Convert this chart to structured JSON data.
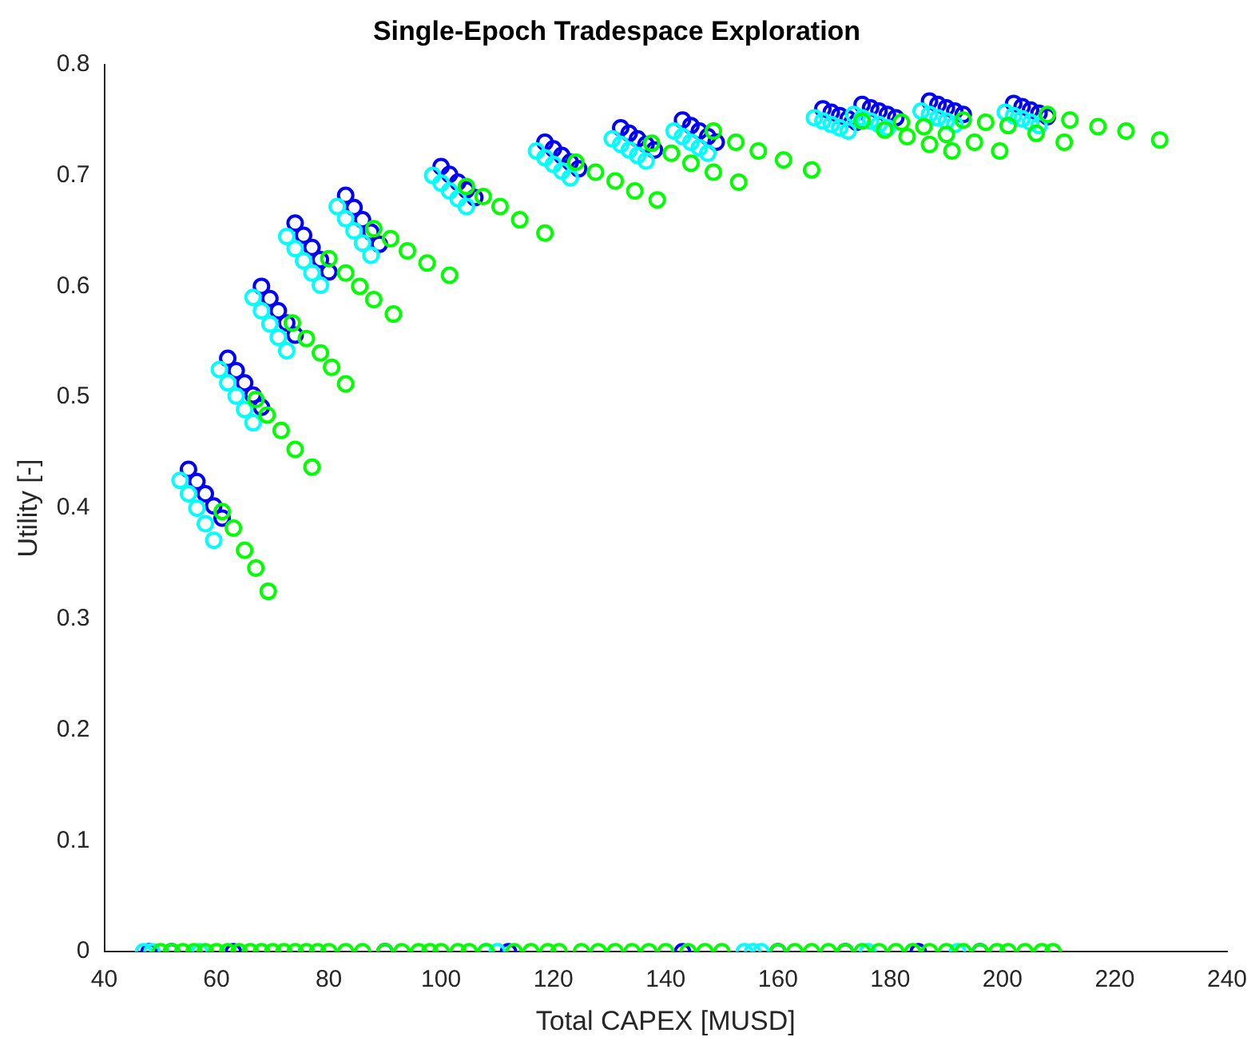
{
  "chart_data": {
    "type": "scatter",
    "title": "Single-Epoch Tradespace Exploration",
    "xlabel": "Total CAPEX [MUSD]",
    "ylabel": "Utility [-]",
    "xlim": [
      40,
      240
    ],
    "xticks": [
      40,
      60,
      80,
      100,
      120,
      140,
      160,
      180,
      200,
      220,
      240
    ],
    "ylim": [
      0,
      0.8
    ],
    "yticks": [
      0,
      0.1,
      0.2,
      0.3,
      0.4,
      0.5,
      0.6,
      0.7,
      0.8
    ],
    "grid": false,
    "legend": false,
    "marker": "circle",
    "series": [
      {
        "color": "#0000ff",
        "x": [
          55,
          56.5,
          58,
          59.5,
          61,
          62,
          63.5,
          65,
          66.5,
          68,
          68,
          69.5,
          71,
          72.5,
          74,
          74,
          75.5,
          77,
          78.5,
          80,
          83,
          84.5,
          86,
          87.5,
          89,
          100,
          101.5,
          103,
          104.5,
          106,
          118.5,
          120,
          121.5,
          123,
          124.5,
          132,
          133.5,
          135,
          136.5,
          138,
          143,
          144.5,
          146,
          147.5,
          149,
          168,
          169.5,
          171,
          172.5,
          174,
          175,
          176.5,
          178,
          179.5,
          181,
          187,
          188.5,
          190,
          191.5,
          193,
          202,
          203.5,
          205,
          206.5,
          208,
          48,
          52,
          63,
          90,
          112,
          143,
          160,
          172,
          185,
          196
        ],
        "values": [
          0.435,
          0.424,
          0.413,
          0.402,
          0.391,
          0.535,
          0.524,
          0.513,
          0.502,
          0.491,
          0.6,
          0.589,
          0.578,
          0.567,
          0.556,
          0.657,
          0.646,
          0.635,
          0.624,
          0.613,
          0.682,
          0.671,
          0.66,
          0.649,
          0.638,
          0.708,
          0.701,
          0.694,
          0.687,
          0.68,
          0.73,
          0.724,
          0.718,
          0.712,
          0.706,
          0.743,
          0.738,
          0.733,
          0.728,
          0.723,
          0.75,
          0.745,
          0.74,
          0.735,
          0.73,
          0.76,
          0.757,
          0.754,
          0.751,
          0.748,
          0.764,
          0.761,
          0.758,
          0.755,
          0.752,
          0.767,
          0.764,
          0.761,
          0.758,
          0.755,
          0.765,
          0.762,
          0.759,
          0.756,
          0.753,
          0,
          0,
          0,
          0,
          0,
          0,
          0,
          0,
          0,
          0
        ]
      },
      {
        "color": "#00ffff",
        "x": [
          53.5,
          55,
          56.5,
          58,
          59.5,
          60.5,
          62,
          63.5,
          65,
          66.5,
          66.5,
          68,
          69.5,
          71,
          72.5,
          72.5,
          74,
          75.5,
          77,
          78.5,
          81.5,
          83,
          84.5,
          86,
          87.5,
          98.5,
          100,
          101.5,
          103,
          104.5,
          117,
          118.5,
          120,
          121.5,
          123,
          130.5,
          132,
          133.5,
          135,
          136.5,
          141.5,
          143,
          144.5,
          146,
          147.5,
          166.5,
          168,
          169.5,
          171,
          172.5,
          173.5,
          175,
          176.5,
          178,
          179.5,
          185.5,
          187,
          188.5,
          190,
          191.5,
          200.5,
          202,
          203.5,
          205,
          206.5,
          47,
          48.5,
          57,
          108,
          110,
          154,
          155.5,
          157,
          176,
          192
        ],
        "values": [
          0.425,
          0.413,
          0.4,
          0.386,
          0.371,
          0.525,
          0.513,
          0.501,
          0.489,
          0.477,
          0.59,
          0.578,
          0.566,
          0.554,
          0.542,
          0.645,
          0.634,
          0.623,
          0.612,
          0.601,
          0.672,
          0.661,
          0.65,
          0.639,
          0.628,
          0.7,
          0.693,
          0.686,
          0.679,
          0.672,
          0.722,
          0.716,
          0.71,
          0.704,
          0.698,
          0.733,
          0.728,
          0.723,
          0.718,
          0.713,
          0.74,
          0.735,
          0.73,
          0.725,
          0.72,
          0.752,
          0.749,
          0.746,
          0.743,
          0.74,
          0.755,
          0.752,
          0.749,
          0.746,
          0.743,
          0.758,
          0.755,
          0.752,
          0.749,
          0.746,
          0.757,
          0.754,
          0.751,
          0.748,
          0.745,
          0,
          0,
          0,
          0,
          0,
          0,
          0,
          0,
          0,
          0
        ]
      },
      {
        "color": "#00ff00",
        "x": [
          61,
          63,
          65,
          67,
          69.2,
          67,
          69,
          71.5,
          74,
          77,
          73.5,
          76,
          78.5,
          80.5,
          83,
          80,
          83,
          85.5,
          88,
          91.5,
          88,
          91,
          94,
          97.5,
          101.5,
          104.5,
          107.5,
          110.5,
          114,
          118.5,
          124,
          127.5,
          131,
          134.5,
          138.5,
          137.5,
          141,
          144.5,
          148.5,
          153,
          148.5,
          152.5,
          156.5,
          161,
          166,
          175,
          179,
          183,
          187,
          191,
          182,
          186,
          190,
          195,
          199.5,
          193,
          197,
          201,
          206,
          211,
          208,
          212,
          217,
          222,
          228,
          50,
          52,
          54,
          56,
          58,
          60,
          62,
          64,
          66,
          68,
          70,
          72,
          74,
          76,
          78,
          80,
          83,
          86,
          90,
          93,
          96,
          98,
          100,
          103,
          105,
          108,
          113,
          116,
          119,
          121,
          125,
          128,
          131,
          134,
          137,
          140,
          144,
          147,
          150,
          160,
          163,
          166,
          169,
          172,
          175,
          178,
          181,
          184,
          187,
          190,
          193,
          196,
          199,
          201,
          204,
          207,
          209
        ],
        "values": [
          0.397,
          0.382,
          0.362,
          0.346,
          0.325,
          0.498,
          0.484,
          0.47,
          0.453,
          0.437,
          0.567,
          0.553,
          0.54,
          0.527,
          0.512,
          0.625,
          0.612,
          0.6,
          0.588,
          0.575,
          0.652,
          0.643,
          0.632,
          0.621,
          0.61,
          0.69,
          0.681,
          0.672,
          0.66,
          0.648,
          0.712,
          0.703,
          0.695,
          0.686,
          0.678,
          0.729,
          0.72,
          0.711,
          0.703,
          0.694,
          0.74,
          0.73,
          0.722,
          0.714,
          0.705,
          0.749,
          0.741,
          0.735,
          0.728,
          0.722,
          0.748,
          0.744,
          0.737,
          0.73,
          0.722,
          0.75,
          0.748,
          0.745,
          0.738,
          0.73,
          0.755,
          0.75,
          0.744,
          0.74,
          0.732,
          0,
          0,
          0,
          0,
          0,
          0,
          0,
          0,
          0,
          0,
          0,
          0,
          0,
          0,
          0,
          0,
          0,
          0,
          0,
          0,
          0,
          0,
          0,
          0,
          0,
          0,
          0,
          0,
          0,
          0,
          0,
          0,
          0,
          0,
          0,
          0,
          0,
          0,
          0,
          0,
          0,
          0,
          0,
          0,
          0,
          0,
          0,
          0,
          0,
          0,
          0,
          0,
          0,
          0,
          0,
          0,
          0
        ]
      }
    ]
  }
}
